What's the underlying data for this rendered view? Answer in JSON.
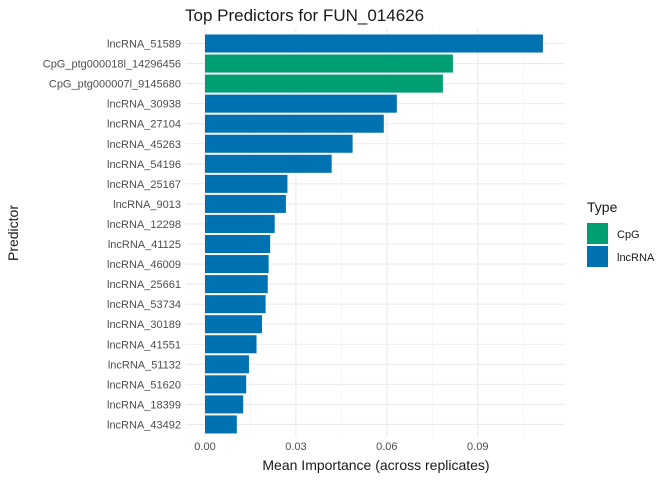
{
  "chart_data": {
    "type": "bar",
    "orientation": "horizontal",
    "title": "Top Predictors for FUN_014626",
    "xlabel": "Mean Importance (across replicates)",
    "ylabel": "Predictor",
    "xlim": [
      0,
      0.113
    ],
    "xticks": [
      0.0,
      0.03,
      0.06,
      0.09
    ],
    "xtick_labels": [
      "0.00",
      "0.03",
      "0.06",
      "0.09"
    ],
    "grid": true,
    "legend": {
      "title": "Type",
      "placement": "right",
      "items": [
        {
          "label": "CpG",
          "color": "#009E73"
        },
        {
          "label": "lncRNA",
          "color": "#0072B2"
        }
      ]
    },
    "bars": [
      {
        "category": "lncRNA_51589",
        "value": 0.1115,
        "type": "lncRNA"
      },
      {
        "category": "CpG_ptg000018l_14296456",
        "value": 0.0818,
        "type": "CpG"
      },
      {
        "category": "CpG_ptg000007l_9145680",
        "value": 0.0785,
        "type": "CpG"
      },
      {
        "category": "lncRNA_30938",
        "value": 0.0633,
        "type": "lncRNA"
      },
      {
        "category": "lncRNA_27104",
        "value": 0.059,
        "type": "lncRNA"
      },
      {
        "category": "lncRNA_45263",
        "value": 0.0487,
        "type": "lncRNA"
      },
      {
        "category": "lncRNA_54196",
        "value": 0.0418,
        "type": "lncRNA"
      },
      {
        "category": "lncRNA_25167",
        "value": 0.0272,
        "type": "lncRNA"
      },
      {
        "category": "lncRNA_9013",
        "value": 0.0267,
        "type": "lncRNA"
      },
      {
        "category": "lncRNA_12298",
        "value": 0.023,
        "type": "lncRNA"
      },
      {
        "category": "lncRNA_41125",
        "value": 0.0215,
        "type": "lncRNA"
      },
      {
        "category": "lncRNA_46009",
        "value": 0.021,
        "type": "lncRNA"
      },
      {
        "category": "lncRNA_25661",
        "value": 0.0207,
        "type": "lncRNA"
      },
      {
        "category": "lncRNA_53734",
        "value": 0.02,
        "type": "lncRNA"
      },
      {
        "category": "lncRNA_30189",
        "value": 0.0188,
        "type": "lncRNA"
      },
      {
        "category": "lncRNA_41551",
        "value": 0.017,
        "type": "lncRNA"
      },
      {
        "category": "lncRNA_51132",
        "value": 0.0145,
        "type": "lncRNA"
      },
      {
        "category": "lncRNA_51620",
        "value": 0.0136,
        "type": "lncRNA"
      },
      {
        "category": "lncRNA_18399",
        "value": 0.0126,
        "type": "lncRNA"
      },
      {
        "category": "lncRNA_43492",
        "value": 0.0105,
        "type": "lncRNA"
      }
    ]
  }
}
